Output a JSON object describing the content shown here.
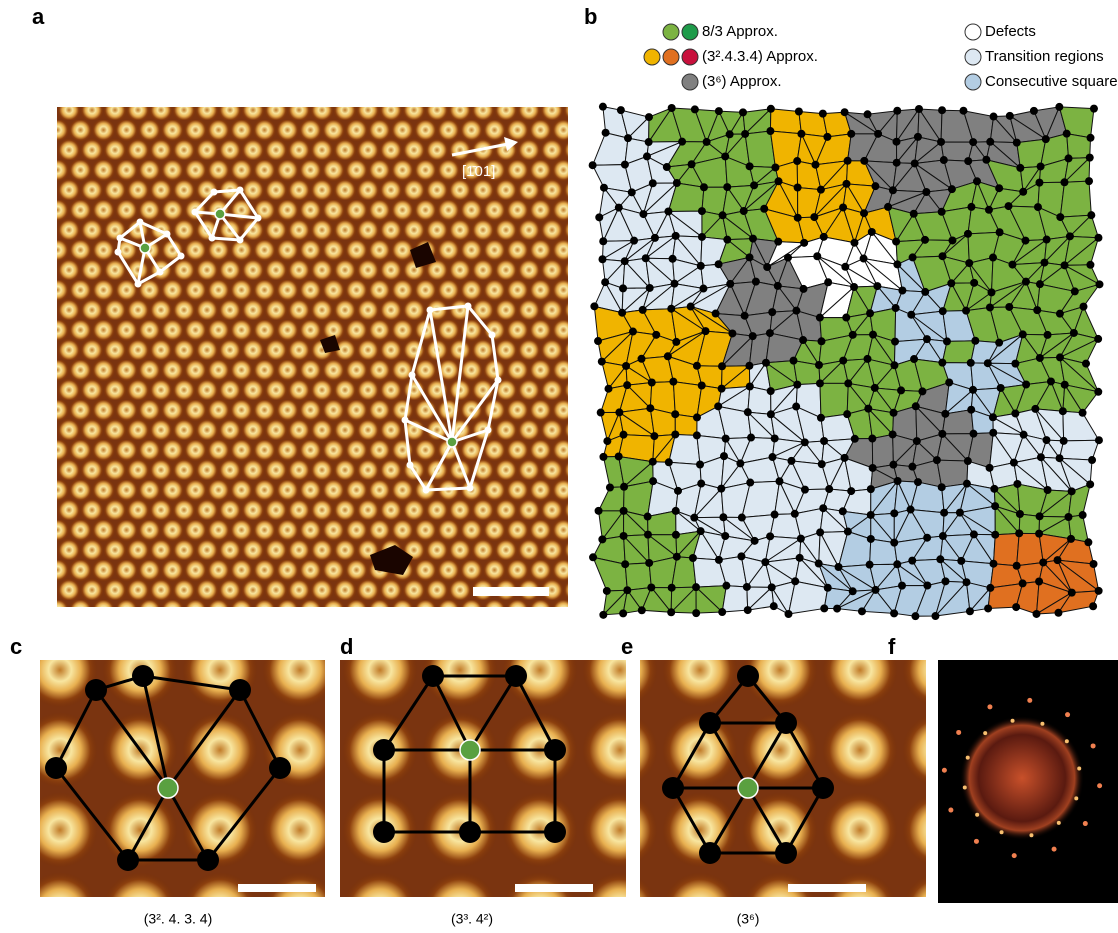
{
  "panel_labels": [
    "a",
    "b",
    "c",
    "d",
    "e",
    "f"
  ],
  "direction_label": "[1̄01]",
  "legend": [
    {
      "label": "8/3 Approx.",
      "colors": [
        "#7cb342",
        "#1e9b4a"
      ]
    },
    {
      "label": "(3².4.3.4) Approx.",
      "colors": [
        "#f0b400",
        "#e07020",
        "#c8103c"
      ]
    },
    {
      "label": "(3⁶) Approx.",
      "colors": [
        "#808080"
      ]
    },
    {
      "label": "Defects",
      "colors": [
        "#ffffff"
      ]
    },
    {
      "label": "Transition regions",
      "colors": [
        "#dde8f2"
      ]
    },
    {
      "label": "Consecutive squares",
      "colors": [
        "#b3cde3"
      ]
    }
  ],
  "captions": [
    "(3². 4. 3. 4)",
    "(3³. 4²)",
    "(3⁶)"
  ]
}
